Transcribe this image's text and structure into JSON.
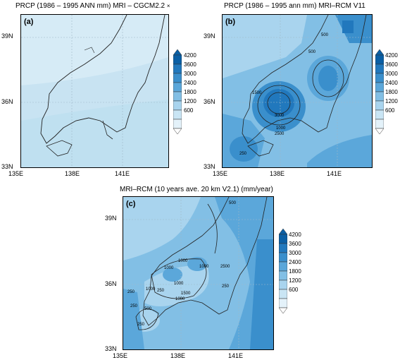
{
  "panels": [
    {
      "id": "a",
      "title": "PRCP (1986 – 1995 ANN mm) MRI – CGCM2.2",
      "title_mark": "×",
      "label": "(a)",
      "y_ticks": [
        "39N",
        "36N",
        "33N"
      ],
      "x_ticks": [
        "135E",
        "138E",
        "141E"
      ]
    },
    {
      "id": "b",
      "title": "PRCP (1986 – 1995 ann mm) MRI–RCM V11",
      "label": "(b)",
      "y_ticks": [
        "39N",
        "36N",
        "33N"
      ],
      "x_ticks": [
        "135E",
        "138E",
        "141E"
      ],
      "contour_labels": [
        "500",
        "500",
        "1500",
        "3000",
        "1000",
        "2500",
        "250"
      ]
    },
    {
      "id": "c",
      "title": "MRI–RCM (10 years ave. 20 km V2.1) (mm/year)",
      "label": "(c)",
      "y_ticks": [
        "39N",
        "36N",
        "33N"
      ],
      "x_ticks": [
        "135E",
        "138E",
        "141E"
      ],
      "contour_labels": [
        "500",
        "1000",
        "1000",
        "2500",
        "1000",
        "1000",
        "1500",
        "250",
        "500",
        "1000",
        "250",
        "250",
        "1000",
        "250",
        "250"
      ]
    }
  ],
  "colorbar": {
    "ticks": [
      "4200",
      "3600",
      "3000",
      "2400",
      "1800",
      "1200",
      "600"
    ],
    "colors": [
      "#0a5fa5",
      "#2178bd",
      "#3a8fcc",
      "#5ba7da",
      "#82bfe5",
      "#a9d4ee",
      "#c9e5f4",
      "#e4f2fa"
    ]
  },
  "colors": {
    "land_line": "#222222",
    "grid": "#9fb8c8"
  }
}
